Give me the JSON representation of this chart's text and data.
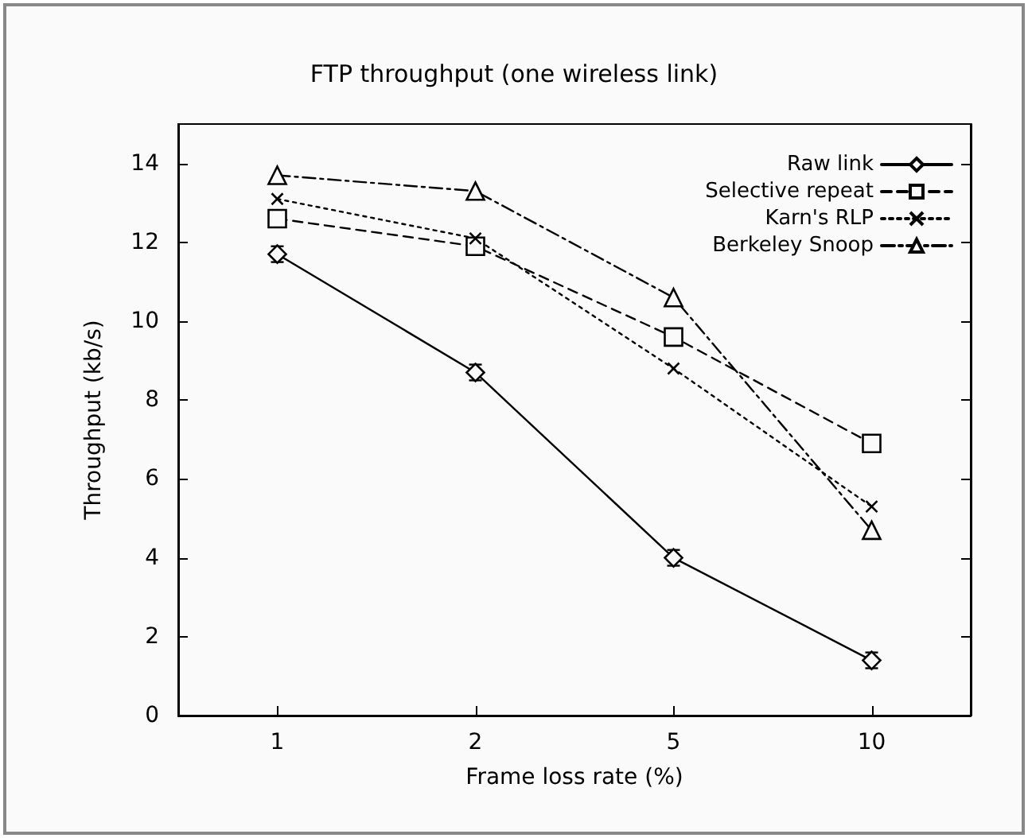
{
  "chart_data": {
    "type": "line",
    "title": "FTP throughput (one wireless link)",
    "xlabel": "Frame loss rate (%)",
    "ylabel": "Throughput (kb/s)",
    "categories": [
      "1",
      "2",
      "5",
      "10"
    ],
    "series": [
      {
        "name": "Raw link",
        "color": "#000000",
        "values": [
          11.7,
          8.7,
          4.0,
          1.4
        ],
        "errors": [
          0.2,
          0.2,
          0.2,
          0.2
        ],
        "marker": "diamond",
        "line_style": "solid"
      },
      {
        "name": "Selective repeat",
        "color": "#000000",
        "values": [
          12.6,
          11.9,
          9.6,
          6.9
        ],
        "marker": "square",
        "line_style": "dashed"
      },
      {
        "name": "Karn's RLP",
        "color": "#000000",
        "values": [
          13.1,
          12.1,
          8.8,
          5.3
        ],
        "marker": "cross",
        "line_style": "dotted"
      },
      {
        "name": "Berkeley Snoop",
        "color": "#000000",
        "values": [
          13.7,
          13.3,
          10.6,
          4.7
        ],
        "marker": "triangle",
        "line_style": "dashdot"
      }
    ],
    "ylim": [
      0,
      15
    ],
    "yticks": [
      0,
      2,
      4,
      6,
      8,
      10,
      12,
      14
    ],
    "grid": false,
    "legend": "top right"
  }
}
